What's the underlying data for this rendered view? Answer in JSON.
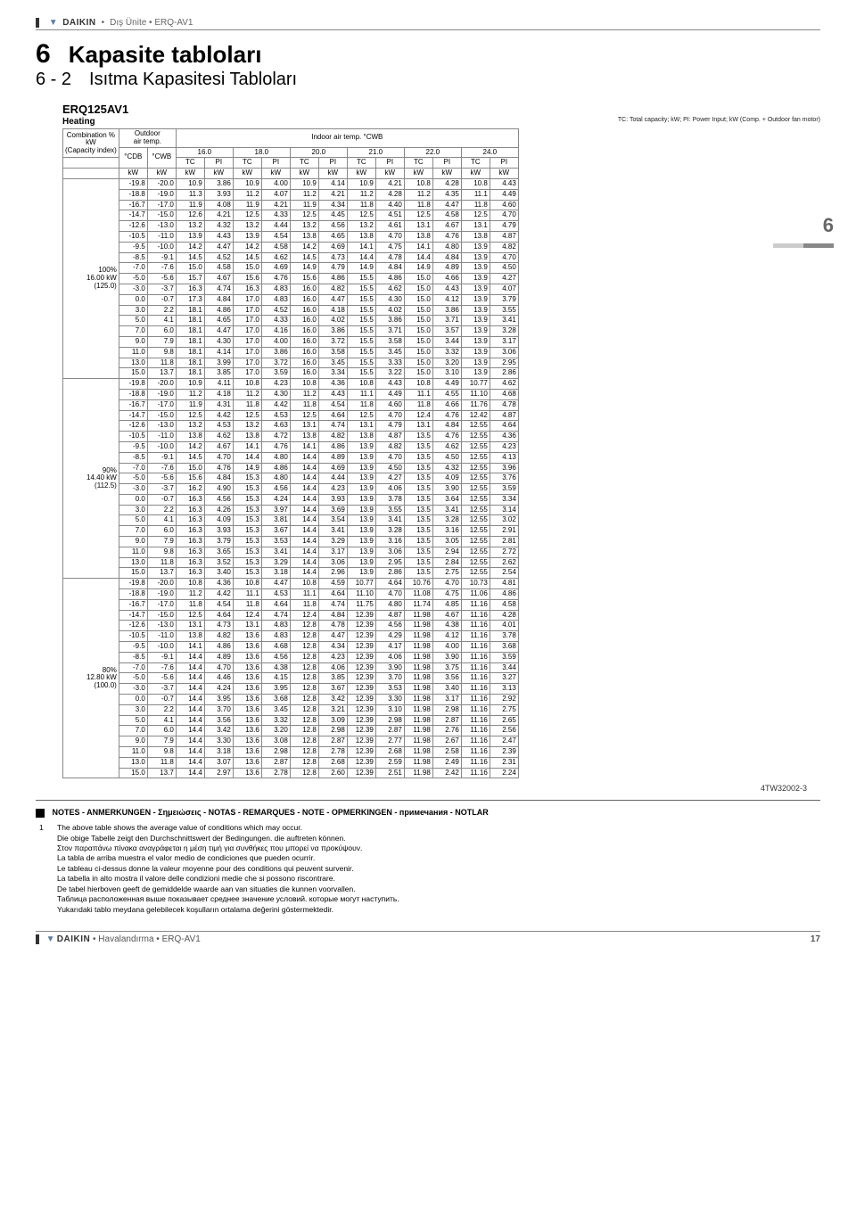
{
  "header": {
    "brand": "DAIKIN",
    "breadcrumb": "Dış Ünite • ERQ-AV1"
  },
  "section": {
    "num": "6",
    "title": "Kapasite tabloları",
    "subnum": "6 - 2",
    "subtitle": "Isıtma Kapasitesi Tabloları"
  },
  "model": "ERQ125AV1",
  "mode": "Heating",
  "legend": "TC: Total capacity; kW; PI: Power Input; kW (Comp. + Outdoor fan motor)",
  "row_header": {
    "combo": "Combination %",
    "kw": "kW",
    "ci": "(Capacity index)",
    "outdoor": "Outdoor",
    "airtemp": "air temp.",
    "cdb": "°CDB",
    "cwb": "°CWB",
    "indoor": "Indoor air temp. °CWB",
    "tc": "TC",
    "pi": "PI",
    "u_kw": "kW"
  },
  "temps": [
    "16.0",
    "18.0",
    "20.0",
    "21.0",
    "22.0",
    "24.0"
  ],
  "groups": [
    {
      "label_pct": "100%",
      "label_kw": "16.00 kW",
      "label_ci": "(125.0)",
      "rows": [
        [
          "-19.8",
          "-20.0",
          "10.9",
          "3.86",
          "10.9",
          "4.00",
          "10.9",
          "4.14",
          "10.9",
          "4.21",
          "10.8",
          "4.28",
          "10.8",
          "4.43"
        ],
        [
          "-18.8",
          "-19.0",
          "11.3",
          "3.93",
          "11.2",
          "4.07",
          "11.2",
          "4.21",
          "11.2",
          "4.28",
          "11.2",
          "4.35",
          "11.1",
          "4.49"
        ],
        [
          "-16.7",
          "-17.0",
          "11.9",
          "4.08",
          "11.9",
          "4.21",
          "11.9",
          "4.34",
          "11.8",
          "4.40",
          "11.8",
          "4.47",
          "11.8",
          "4.60"
        ],
        [
          "-14.7",
          "-15.0",
          "12.6",
          "4.21",
          "12.5",
          "4.33",
          "12.5",
          "4.45",
          "12.5",
          "4.51",
          "12.5",
          "4.58",
          "12.5",
          "4.70"
        ],
        [
          "-12.6",
          "-13.0",
          "13.2",
          "4.32",
          "13.2",
          "4.44",
          "13.2",
          "4.56",
          "13.2",
          "4.61",
          "13.1",
          "4.67",
          "13.1",
          "4.79"
        ],
        [
          "-10.5",
          "-11.0",
          "13.9",
          "4.43",
          "13.9",
          "4.54",
          "13.8",
          "4.65",
          "13.8",
          "4.70",
          "13.8",
          "4.76",
          "13.8",
          "4.87"
        ],
        [
          "-9.5",
          "-10.0",
          "14.2",
          "4.47",
          "14.2",
          "4.58",
          "14.2",
          "4.69",
          "14.1",
          "4.75",
          "14.1",
          "4.80",
          "13.9",
          "4.82"
        ],
        [
          "-8.5",
          "-9.1",
          "14.5",
          "4.52",
          "14.5",
          "4.62",
          "14.5",
          "4.73",
          "14.4",
          "4.78",
          "14.4",
          "4.84",
          "13.9",
          "4.70"
        ],
        [
          "-7.0",
          "-7.6",
          "15.0",
          "4.58",
          "15.0",
          "4.69",
          "14.9",
          "4.79",
          "14.9",
          "4.84",
          "14.9",
          "4.89",
          "13.9",
          "4.50"
        ],
        [
          "-5.0",
          "-5.6",
          "15.7",
          "4.67",
          "15.6",
          "4.76",
          "15.6",
          "4.86",
          "15.5",
          "4.86",
          "15.0",
          "4.66",
          "13.9",
          "4.27"
        ],
        [
          "-3.0",
          "-3.7",
          "16.3",
          "4.74",
          "16.3",
          "4.83",
          "16.0",
          "4.82",
          "15.5",
          "4.62",
          "15.0",
          "4.43",
          "13.9",
          "4.07"
        ],
        [
          "0.0",
          "-0.7",
          "17.3",
          "4.84",
          "17.0",
          "4.83",
          "16.0",
          "4.47",
          "15.5",
          "4.30",
          "15.0",
          "4.12",
          "13.9",
          "3.79"
        ],
        [
          "3.0",
          "2.2",
          "18.1",
          "4.86",
          "17.0",
          "4.52",
          "16.0",
          "4.18",
          "15.5",
          "4.02",
          "15.0",
          "3.86",
          "13.9",
          "3.55"
        ],
        [
          "5.0",
          "4.1",
          "18.1",
          "4.65",
          "17.0",
          "4.33",
          "16.0",
          "4.02",
          "15.5",
          "3.86",
          "15.0",
          "3.71",
          "13.9",
          "3.41"
        ],
        [
          "7.0",
          "6.0",
          "18.1",
          "4.47",
          "17.0",
          "4.16",
          "16.0",
          "3.86",
          "15.5",
          "3.71",
          "15.0",
          "3.57",
          "13.9",
          "3.28"
        ],
        [
          "9.0",
          "7.9",
          "18.1",
          "4.30",
          "17.0",
          "4.00",
          "16.0",
          "3.72",
          "15.5",
          "3.58",
          "15.0",
          "3.44",
          "13.9",
          "3.17"
        ],
        [
          "11.0",
          "9.8",
          "18.1",
          "4.14",
          "17.0",
          "3.86",
          "16.0",
          "3.58",
          "15.5",
          "3.45",
          "15.0",
          "3.32",
          "13.9",
          "3.06"
        ],
        [
          "13.0",
          "11.8",
          "18.1",
          "3.99",
          "17.0",
          "3.72",
          "16.0",
          "3.45",
          "15.5",
          "3.33",
          "15.0",
          "3.20",
          "13.9",
          "2.95"
        ],
        [
          "15.0",
          "13.7",
          "18.1",
          "3.85",
          "17.0",
          "3.59",
          "16.0",
          "3.34",
          "15.5",
          "3.22",
          "15.0",
          "3.10",
          "13.9",
          "2.86"
        ]
      ]
    },
    {
      "label_pct": "90%",
      "label_kw": "14.40 kW",
      "label_ci": "(112.5)",
      "rows": [
        [
          "-19.8",
          "-20.0",
          "10.9",
          "4.11",
          "10.8",
          "4.23",
          "10.8",
          "4.36",
          "10.8",
          "4.43",
          "10.8",
          "4.49",
          "10.77",
          "4.62"
        ],
        [
          "-18.8",
          "-19.0",
          "11.2",
          "4.18",
          "11.2",
          "4.30",
          "11.2",
          "4.43",
          "11.1",
          "4.49",
          "11.1",
          "4.55",
          "11.10",
          "4.68"
        ],
        [
          "-16.7",
          "-17.0",
          "11.9",
          "4.31",
          "11.8",
          "4.42",
          "11.8",
          "4.54",
          "11.8",
          "4.60",
          "11.8",
          "4.66",
          "11.76",
          "4.78"
        ],
        [
          "-14.7",
          "-15.0",
          "12.5",
          "4.42",
          "12.5",
          "4.53",
          "12.5",
          "4.64",
          "12.5",
          "4.70",
          "12.4",
          "4.76",
          "12.42",
          "4.87"
        ],
        [
          "-12.6",
          "-13.0",
          "13.2",
          "4.53",
          "13.2",
          "4.63",
          "13.1",
          "4.74",
          "13.1",
          "4.79",
          "13.1",
          "4.84",
          "12.55",
          "4.64"
        ],
        [
          "-10.5",
          "-11.0",
          "13.8",
          "4.62",
          "13.8",
          "4.72",
          "13.8",
          "4.82",
          "13.8",
          "4.87",
          "13.5",
          "4.76",
          "12.55",
          "4.36"
        ],
        [
          "-9.5",
          "-10.0",
          "14.2",
          "4.67",
          "14.1",
          "4.76",
          "14.1",
          "4.86",
          "13.9",
          "4.82",
          "13.5",
          "4.62",
          "12.55",
          "4.23"
        ],
        [
          "-8.5",
          "-9.1",
          "14.5",
          "4.70",
          "14.4",
          "4.80",
          "14.4",
          "4.89",
          "13.9",
          "4.70",
          "13.5",
          "4.50",
          "12.55",
          "4.13"
        ],
        [
          "-7.0",
          "-7.6",
          "15.0",
          "4.76",
          "14.9",
          "4.86",
          "14.4",
          "4.69",
          "13.9",
          "4.50",
          "13.5",
          "4.32",
          "12.55",
          "3.96"
        ],
        [
          "-5.0",
          "-5.6",
          "15.6",
          "4.84",
          "15.3",
          "4.80",
          "14.4",
          "4.44",
          "13.9",
          "4.27",
          "13.5",
          "4.09",
          "12.55",
          "3.76"
        ],
        [
          "-3.0",
          "-3.7",
          "16.2",
          "4.90",
          "15.3",
          "4.56",
          "14.4",
          "4.23",
          "13.9",
          "4.06",
          "13.5",
          "3.90",
          "12.55",
          "3.59"
        ],
        [
          "0.0",
          "-0.7",
          "16.3",
          "4.56",
          "15.3",
          "4.24",
          "14.4",
          "3.93",
          "13.9",
          "3.78",
          "13.5",
          "3.64",
          "12.55",
          "3.34"
        ],
        [
          "3.0",
          "2.2",
          "16.3",
          "4.26",
          "15.3",
          "3.97",
          "14.4",
          "3.69",
          "13.9",
          "3.55",
          "13.5",
          "3.41",
          "12.55",
          "3.14"
        ],
        [
          "5.0",
          "4.1",
          "16.3",
          "4.09",
          "15.3",
          "3.81",
          "14.4",
          "3.54",
          "13.9",
          "3.41",
          "13.5",
          "3.28",
          "12.55",
          "3.02"
        ],
        [
          "7.0",
          "6.0",
          "16.3",
          "3.93",
          "15.3",
          "3.67",
          "14.4",
          "3.41",
          "13.9",
          "3.28",
          "13.5",
          "3.16",
          "12.55",
          "2.91"
        ],
        [
          "9.0",
          "7.9",
          "16.3",
          "3.79",
          "15.3",
          "3.53",
          "14.4",
          "3.29",
          "13.9",
          "3.16",
          "13.5",
          "3.05",
          "12.55",
          "2.81"
        ],
        [
          "11.0",
          "9.8",
          "16.3",
          "3.65",
          "15.3",
          "3.41",
          "14.4",
          "3.17",
          "13.9",
          "3.06",
          "13.5",
          "2.94",
          "12.55",
          "2.72"
        ],
        [
          "13.0",
          "11.8",
          "16.3",
          "3.52",
          "15.3",
          "3.29",
          "14.4",
          "3.06",
          "13.9",
          "2.95",
          "13.5",
          "2.84",
          "12.55",
          "2.62"
        ],
        [
          "15.0",
          "13.7",
          "16.3",
          "3.40",
          "15.3",
          "3.18",
          "14.4",
          "2.96",
          "13.9",
          "2.86",
          "13.5",
          "2.75",
          "12.55",
          "2.54"
        ]
      ]
    },
    {
      "label_pct": "80%",
      "label_kw": "12.80 kW",
      "label_ci": "(100.0)",
      "rows": [
        [
          "-19.8",
          "-20.0",
          "10.8",
          "4.36",
          "10.8",
          "4.47",
          "10.8",
          "4.59",
          "10.77",
          "4.64",
          "10.76",
          "4.70",
          "10.73",
          "4.81"
        ],
        [
          "-18.8",
          "-19.0",
          "11.2",
          "4.42",
          "11.1",
          "4.53",
          "11.1",
          "4.64",
          "11.10",
          "4.70",
          "11.08",
          "4.75",
          "11.06",
          "4.86"
        ],
        [
          "-16.7",
          "-17.0",
          "11.8",
          "4.54",
          "11.8",
          "4.64",
          "11.8",
          "4.74",
          "11.75",
          "4.80",
          "11.74",
          "4.85",
          "11.16",
          "4.58"
        ],
        [
          "-14.7",
          "-15.0",
          "12.5",
          "4.64",
          "12.4",
          "4.74",
          "12.4",
          "4.84",
          "12.39",
          "4.87",
          "11.98",
          "4.67",
          "11.16",
          "4.28"
        ],
        [
          "-12.6",
          "-13.0",
          "13.1",
          "4.73",
          "13.1",
          "4.83",
          "12.8",
          "4.78",
          "12.39",
          "4.56",
          "11.98",
          "4.38",
          "11.16",
          "4.01"
        ],
        [
          "-10.5",
          "-11.0",
          "13.8",
          "4.82",
          "13.6",
          "4.83",
          "12.8",
          "4.47",
          "12.39",
          "4.29",
          "11.98",
          "4.12",
          "11.16",
          "3.78"
        ],
        [
          "-9.5",
          "-10.0",
          "14.1",
          "4.86",
          "13.6",
          "4.68",
          "12.8",
          "4.34",
          "12.39",
          "4.17",
          "11.98",
          "4.00",
          "11.16",
          "3.68"
        ],
        [
          "-8.5",
          "-9.1",
          "14.4",
          "4.89",
          "13.6",
          "4.56",
          "12.8",
          "4.23",
          "12.39",
          "4.06",
          "11.98",
          "3.90",
          "11.16",
          "3.59"
        ],
        [
          "-7.0",
          "-7.6",
          "14.4",
          "4.70",
          "13.6",
          "4.38",
          "12.8",
          "4.06",
          "12.39",
          "3.90",
          "11.98",
          "3.75",
          "11.16",
          "3.44"
        ],
        [
          "-5.0",
          "-5.6",
          "14.4",
          "4.46",
          "13.6",
          "4.15",
          "12.8",
          "3.85",
          "12.39",
          "3.70",
          "11.98",
          "3.56",
          "11.16",
          "3.27"
        ],
        [
          "-3.0",
          "-3.7",
          "14.4",
          "4.24",
          "13.6",
          "3.95",
          "12.8",
          "3.67",
          "12.39",
          "3.53",
          "11.98",
          "3.40",
          "11.16",
          "3.13"
        ],
        [
          "0.0",
          "-0.7",
          "14.4",
          "3.95",
          "13.6",
          "3.68",
          "12.8",
          "3.42",
          "12.39",
          "3.30",
          "11.98",
          "3.17",
          "11.16",
          "2.92"
        ],
        [
          "3.0",
          "2.2",
          "14.4",
          "3.70",
          "13.6",
          "3.45",
          "12.8",
          "3.21",
          "12.39",
          "3.10",
          "11.98",
          "2.98",
          "11.16",
          "2.75"
        ],
        [
          "5.0",
          "4.1",
          "14.4",
          "3.56",
          "13.6",
          "3.32",
          "12.8",
          "3.09",
          "12.39",
          "2.98",
          "11.98",
          "2.87",
          "11.16",
          "2.65"
        ],
        [
          "7.0",
          "6.0",
          "14.4",
          "3.42",
          "13.6",
          "3.20",
          "12.8",
          "2.98",
          "12.39",
          "2.87",
          "11.98",
          "2.76",
          "11.16",
          "2.56"
        ],
        [
          "9.0",
          "7.9",
          "14.4",
          "3.30",
          "13.6",
          "3.08",
          "12.8",
          "2.87",
          "12.39",
          "2.77",
          "11.98",
          "2.67",
          "11.16",
          "2.47"
        ],
        [
          "11.0",
          "9.8",
          "14.4",
          "3.18",
          "13.6",
          "2.98",
          "12.8",
          "2.78",
          "12.39",
          "2.68",
          "11.98",
          "2.58",
          "11.16",
          "2.39"
        ],
        [
          "13.0",
          "11.8",
          "14.4",
          "3.07",
          "13.6",
          "2.87",
          "12.8",
          "2.68",
          "12.39",
          "2.59",
          "11.98",
          "2.49",
          "11.16",
          "2.31"
        ],
        [
          "15.0",
          "13.7",
          "14.4",
          "2.97",
          "13.6",
          "2.78",
          "12.8",
          "2.60",
          "12.39",
          "2.51",
          "11.98",
          "2.42",
          "11.16",
          "2.24"
        ]
      ]
    }
  ],
  "ref": "4TW32002-3",
  "side_num": "6",
  "notes": {
    "title": "NOTES - ANMERKUNGEN - Σημειώσεις - NOTAS - REMARQUES - NOTE - OPMERKINGEN - примечания - NOTLAR",
    "num": "1",
    "lines": [
      "The above table shows the average value of conditions which may occur.",
      "Die obige Tabelle zeigt den Durchschnittswert der Bedingungen. die auftreten können.",
      "Στον παραπάνω πίνακα αναγράφεται η μέση τιμή για συνθήκες που μπορεί να προκύψουν.",
      "La tabla de arriba muestra el valor medio de condiciones que pueden ocurrir.",
      "Le tableau ci-dessus donne la valeur moyenne pour des conditions qui peuvent survenir.",
      "La tabella in alto mostra il valore delle condizioni medie che si possono riscontrare.",
      "De tabel hierboven geeft de gemiddelde waarde aan van situaties die kunnen voorvallen.",
      "Таблица расположенная выше показывает среднее значение условий. которые могут наступить.",
      "Yukarıdaki tablo meydana gelebilecek koşulların ortalama değerini göstermektedir."
    ]
  },
  "footer": {
    "left_brand": "DAIKIN",
    "left": "Havalandırma • ERQ-AV1",
    "page": "17"
  }
}
